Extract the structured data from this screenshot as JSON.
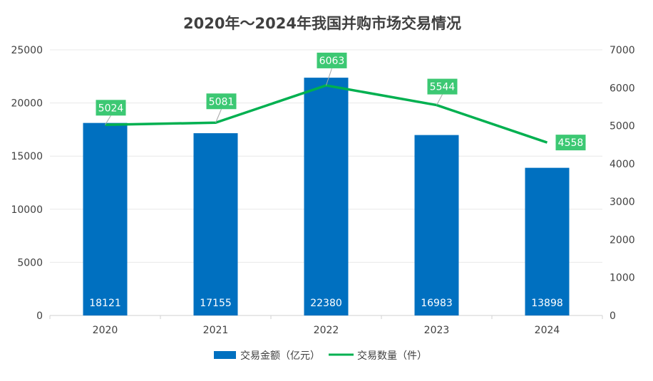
{
  "chart_data": {
    "type": "bar",
    "title": "2020年～2024年我国并购市场交易情况",
    "categories": [
      "2020",
      "2021",
      "2022",
      "2023",
      "2024"
    ],
    "series": [
      {
        "name": "交易金额（亿元）",
        "type": "bar",
        "axis": "left",
        "color": "#0070C0",
        "label_color": "#ffffff",
        "values": [
          18121,
          17155,
          22380,
          16983,
          13898
        ]
      },
      {
        "name": "交易数量（件）",
        "type": "line",
        "axis": "right",
        "color": "#00B050",
        "label_bg": "#3CC873",
        "values": [
          5024,
          5081,
          6063,
          5544,
          4558
        ]
      }
    ],
    "y_left": {
      "min": 0,
      "max": 25000,
      "ticks": [
        "0",
        "5000",
        "10000",
        "15000",
        "20000",
        "25000"
      ]
    },
    "y_right": {
      "min": 0,
      "max": 7000,
      "ticks": [
        "0",
        "1000",
        "2000",
        "3000",
        "4000",
        "5000",
        "6000",
        "7000"
      ]
    },
    "grid": true,
    "legend_position": "bottom"
  }
}
